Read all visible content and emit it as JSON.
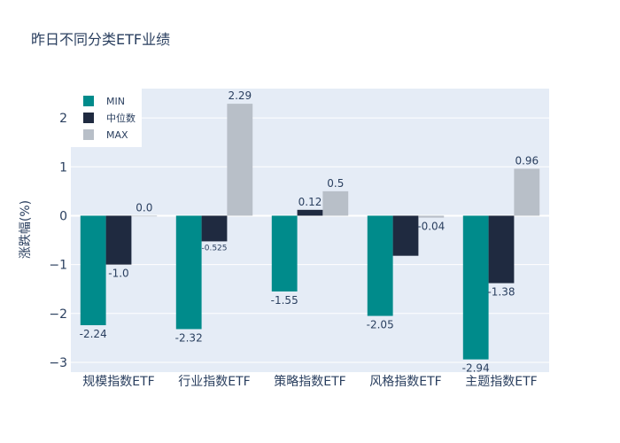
{
  "chart_data": {
    "type": "bar",
    "title": "昨日不同分类ETF业绩",
    "xlabel": "",
    "ylabel": "涨跌幅(%)",
    "categories": [
      "规模指数ETF",
      "行业指数ETF",
      "策略指数ETF",
      "风格指数ETF",
      "主题指数ETF"
    ],
    "series": [
      {
        "name": "MIN",
        "values": [
          -2.24,
          -2.32,
          -1.55,
          -2.05,
          -2.94
        ],
        "labels": [
          "-2.24",
          "-2.32",
          "-1.55",
          "-2.05",
          "-2.94"
        ],
        "color": "#008b8b"
      },
      {
        "name": "中位数",
        "values": [
          -1.0,
          -0.525,
          0.12,
          -0.82,
          -1.38
        ],
        "labels": [
          "-1.0",
          "-0.525",
          "0.12",
          "",
          "-1.38"
        ],
        "color": "#1f2a40"
      },
      {
        "name": "MAX",
        "values": [
          0.0,
          2.29,
          0.5,
          -0.04,
          0.96
        ],
        "labels": [
          "0.0",
          "2.29",
          "0.5",
          "-0.04",
          "0.96"
        ],
        "color": "#b8bfc8"
      }
    ],
    "ylim": [
      -3.2,
      2.6
    ],
    "yticks": [
      -3,
      -2,
      -1,
      0,
      1,
      2
    ],
    "ytick_labels": [
      "−3",
      "−2",
      "−1",
      "0",
      "1",
      "2"
    ],
    "grid": true,
    "legend": "top-left",
    "background": "#e5ecf6"
  }
}
